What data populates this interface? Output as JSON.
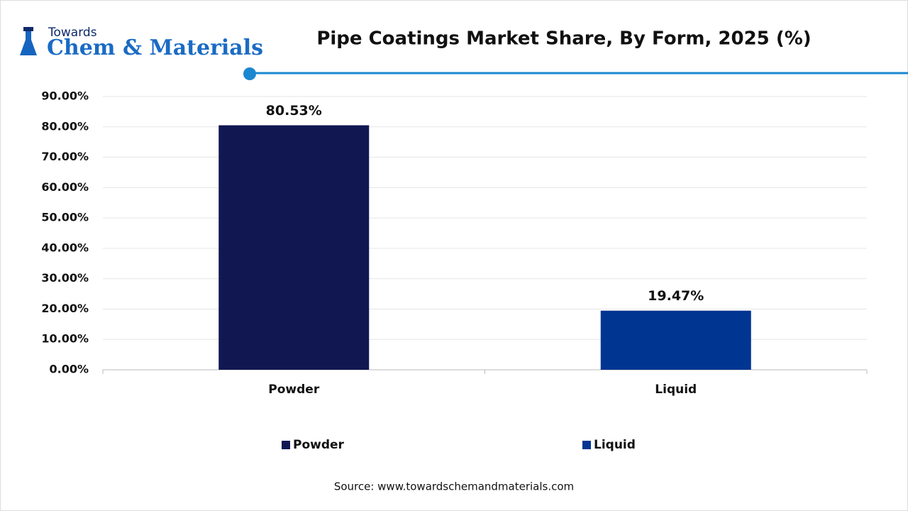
{
  "logo": {
    "top": "Towards",
    "main": "Chem & Materials"
  },
  "chart_data": {
    "type": "bar",
    "title": "Pipe Coatings Market Share, By Form, 2025 (%)",
    "categories": [
      "Powder",
      "Liquid"
    ],
    "values": [
      80.53,
      19.47
    ],
    "value_labels": [
      "80.53%",
      "19.47%"
    ],
    "colors": [
      "#111751",
      "#003592"
    ],
    "ylim": [
      0,
      90
    ],
    "yticks": [
      {
        "value": 0,
        "label": "0.00%"
      },
      {
        "value": 10,
        "label": "10.00%"
      },
      {
        "value": 20,
        "label": "20.00%"
      },
      {
        "value": 30,
        "label": "30.00%"
      },
      {
        "value": 40,
        "label": "40.00%"
      },
      {
        "value": 50,
        "label": "50.00%"
      },
      {
        "value": 60,
        "label": "60.00%"
      },
      {
        "value": 70,
        "label": "70.00%"
      },
      {
        "value": 80,
        "label": "80.00%"
      },
      {
        "value": 90,
        "label": "90.00%"
      }
    ],
    "grid": true,
    "legend": "bottom",
    "source": "Source: www.towardschemandmaterials.com"
  }
}
